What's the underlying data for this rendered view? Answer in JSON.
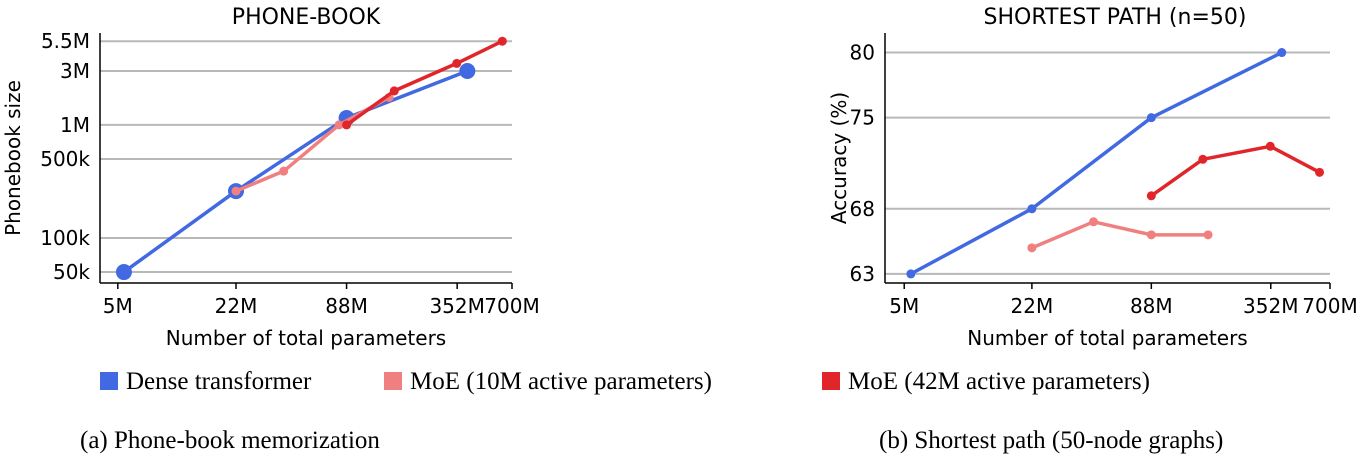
{
  "legend": [
    {
      "label": "Dense transformer",
      "color": "#4169E1"
    },
    {
      "label": "MoE (10M active parameters)",
      "color": "#F08080"
    },
    {
      "label": "MoE (42M active parameters)",
      "color": "#E0262A"
    }
  ],
  "chart_data": [
    {
      "type": "line",
      "title": "PHONE-BOOK",
      "caption": "(a) Phone-book memorization",
      "xlabel": "Number of total parameters",
      "ylabel": "Phonebook size",
      "x_scale": "log",
      "y_scale": "log",
      "xlim": [
        4000000,
        700000000
      ],
      "ylim": [
        40000,
        6500000
      ],
      "grid": "horizontal",
      "x_ticks": [
        {
          "value": 5000000,
          "label": "5M"
        },
        {
          "value": 22000000,
          "label": "22M"
        },
        {
          "value": 88000000,
          "label": "88M"
        },
        {
          "value": 352000000,
          "label": "352M"
        },
        {
          "value": 700000000,
          "label": "700M"
        }
      ],
      "y_ticks": [
        {
          "value": 50000,
          "label": "50k"
        },
        {
          "value": 100000,
          "label": "100k"
        },
        {
          "value": 500000,
          "label": "500k"
        },
        {
          "value": 1000000,
          "label": "1M"
        },
        {
          "value": 3000000,
          "label": "3M"
        },
        {
          "value": 5500000,
          "label": "5.5M"
        }
      ],
      "series": [
        {
          "name": "Dense transformer",
          "color": "#4169E1",
          "marker": "large",
          "points": [
            [
              5400000,
              50000
            ],
            [
              22000000,
              260000
            ],
            [
              88000000,
              1150000
            ],
            [
              400000000,
              3000000
            ]
          ]
        },
        {
          "name": "MoE (10M active parameters)",
          "color": "#F08080",
          "marker": "small",
          "points": [
            [
              22000000,
              260000
            ],
            [
              40000000,
              390000
            ],
            [
              80000000,
              1000000
            ],
            [
              150000000,
              1750000
            ]
          ]
        },
        {
          "name": "MoE (42M active parameters)",
          "color": "#E0262A",
          "marker": "small",
          "points": [
            [
              88000000,
              1000000
            ],
            [
              160000000,
              2000000
            ],
            [
              350000000,
              3500000
            ],
            [
              620000000,
              5500000
            ]
          ]
        }
      ]
    },
    {
      "type": "line",
      "title": "SHORTEST PATH (n=50)",
      "caption": "(b) Shortest path (50-node graphs)",
      "xlabel": "Number of total parameters",
      "ylabel": "Accuracy (%)",
      "x_scale": "log",
      "y_scale": "linear",
      "xlim": [
        4000000,
        700000000
      ],
      "ylim": [
        62.3,
        81.5
      ],
      "grid": "horizontal",
      "x_ticks": [
        {
          "value": 5000000,
          "label": "5M"
        },
        {
          "value": 22000000,
          "label": "22M"
        },
        {
          "value": 88000000,
          "label": "88M"
        },
        {
          "value": 352000000,
          "label": "352M"
        },
        {
          "value": 700000000,
          "label": "700M"
        }
      ],
      "y_ticks": [
        {
          "value": 63,
          "label": "63"
        },
        {
          "value": 68,
          "label": "68"
        },
        {
          "value": 75,
          "label": "75"
        },
        {
          "value": 80,
          "label": "80"
        }
      ],
      "series": [
        {
          "name": "Dense transformer",
          "color": "#4169E1",
          "marker": "small",
          "points": [
            [
              5400000,
              63
            ],
            [
              22000000,
              68
            ],
            [
              88000000,
              75
            ],
            [
              400000000,
              80
            ]
          ]
        },
        {
          "name": "MoE (10M active parameters)",
          "color": "#F08080",
          "marker": "small",
          "points": [
            [
              22000000,
              65
            ],
            [
              45000000,
              67
            ],
            [
              88000000,
              66
            ],
            [
              170000000,
              66
            ]
          ]
        },
        {
          "name": "MoE (42M active parameters)",
          "color": "#E0262A",
          "marker": "small",
          "points": [
            [
              88000000,
              69
            ],
            [
              160000000,
              71.8
            ],
            [
              350000000,
              72.8
            ],
            [
              620000000,
              70.8
            ]
          ]
        }
      ]
    }
  ]
}
